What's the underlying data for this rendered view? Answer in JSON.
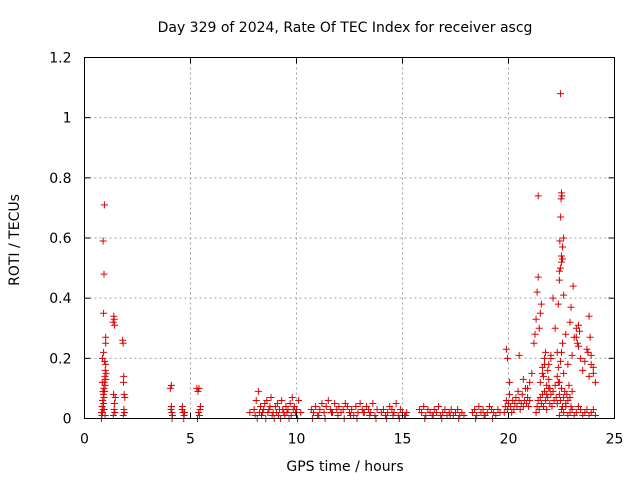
{
  "chart_data": {
    "type": "scatter",
    "title": "Day 329 of 2024, Rate Of TEC Index for receiver ascg",
    "xlabel": "GPS time / hours",
    "ylabel": "ROTI / TECUs",
    "xlim": [
      0,
      25
    ],
    "ylim": [
      0,
      1.2
    ],
    "xticks": [
      0,
      5,
      10,
      15,
      20,
      25
    ],
    "xtick_labels": [
      "0",
      "5",
      "10",
      "15",
      "20",
      "25"
    ],
    "yticks": [
      0,
      0.2,
      0.4,
      0.6,
      0.8,
      1.0,
      1.2
    ],
    "ytick_labels": [
      "0",
      "0.2",
      "0.4",
      "0.6",
      "0.8",
      "1",
      "1.2"
    ],
    "grid": true,
    "marker": "+",
    "color": "#e00000",
    "series": [
      {
        "name": "ROTI",
        "x": [
          0.8,
          0.82,
          0.85,
          0.88,
          0.9,
          0.92,
          0.95,
          0.97,
          1.0,
          1.02,
          0.8,
          0.83,
          0.86,
          0.89,
          0.91,
          0.93,
          0.96,
          0.98,
          1.0,
          0.85,
          0.9,
          0.95,
          0.9,
          0.92,
          0.88,
          0.94,
          1.0,
          1.0,
          0.93,
          0.97,
          0.84,
          0.87,
          1.35,
          1.38,
          1.4,
          1.42,
          1.45,
          1.37,
          1.4,
          1.43,
          1.36,
          1.41,
          1.8,
          1.82,
          1.85,
          1.87,
          1.9,
          1.83,
          1.86,
          1.84,
          1.88,
          4.05,
          4.1,
          4.12,
          4.15,
          4.08,
          4.1,
          4.13,
          4.6,
          4.65,
          4.7,
          4.62,
          4.68,
          4.72,
          5.3,
          5.35,
          5.4,
          5.45,
          5.38,
          5.42,
          5.33,
          5.47,
          7.8,
          8.0,
          8.1,
          8.2,
          8.3,
          8.4,
          8.5,
          8.6,
          8.7,
          8.8,
          8.9,
          9.0,
          9.1,
          9.2,
          9.3,
          9.4,
          9.5,
          9.6,
          9.7,
          9.8,
          9.9,
          10.0,
          10.1,
          10.2,
          8.05,
          8.15,
          8.25,
          8.35,
          8.45,
          8.55,
          8.65,
          8.75,
          8.85,
          8.95,
          9.05,
          9.15,
          9.25,
          9.35,
          9.45,
          9.55,
          9.65,
          9.75,
          9.85,
          9.95,
          10.05,
          10.7,
          10.8,
          10.9,
          11.0,
          11.1,
          11.2,
          11.3,
          11.4,
          11.5,
          11.6,
          11.7,
          11.8,
          11.9,
          12.0,
          12.1,
          12.2,
          12.3,
          12.4,
          12.5,
          12.6,
          12.7,
          12.8,
          12.9,
          13.0,
          13.1,
          13.2,
          13.3,
          13.4,
          13.5,
          13.6,
          13.7,
          13.8,
          10.75,
          11.05,
          11.35,
          11.65,
          11.95,
          12.25,
          12.55,
          12.85,
          13.15,
          13.45,
          13.75,
          14.0,
          14.1,
          14.2,
          14.3,
          14.4,
          14.5,
          14.6,
          14.7,
          14.8,
          14.9,
          15.0,
          15.1,
          15.2,
          14.25,
          14.55,
          14.85,
          15.15,
          15.8,
          15.9,
          16.0,
          16.1,
          16.2,
          16.3,
          16.4,
          16.5,
          16.6,
          16.7,
          16.8,
          16.9,
          17.0,
          17.1,
          17.2,
          17.3,
          17.4,
          17.5,
          17.6,
          17.7,
          17.8,
          17.9,
          16.05,
          16.45,
          16.85,
          17.25,
          17.65,
          18.3,
          18.4,
          18.5,
          18.6,
          18.7,
          18.8,
          18.9,
          19.0,
          19.1,
          19.2,
          19.3,
          19.4,
          19.5,
          19.6,
          18.45,
          18.85,
          19.25,
          19.8,
          19.85,
          19.9,
          19.95,
          20.0,
          20.05,
          20.1,
          20.15,
          20.2,
          20.25,
          20.3,
          20.35,
          20.4,
          20.45,
          20.5,
          20.55,
          20.6,
          20.65,
          20.7,
          20.75,
          20.8,
          20.85,
          20.9,
          20.95,
          21.0,
          19.9,
          19.95,
          20.05,
          20.5,
          20.7,
          20.9,
          21.0,
          21.1,
          21.2,
          21.25,
          21.3,
          21.35,
          21.4,
          21.45,
          21.5,
          21.55,
          21.6,
          21.65,
          21.7,
          21.75,
          21.8,
          21.85,
          21.9,
          21.95,
          22.0,
          21.3,
          21.35,
          21.4,
          21.45,
          21.5,
          21.55,
          21.6,
          21.65,
          21.7,
          21.75,
          21.8,
          21.85,
          21.9,
          21.95,
          22.0,
          22.05,
          22.1,
          22.15,
          22.2,
          22.25,
          22.3,
          22.35,
          22.4,
          22.45,
          22.5,
          22.55,
          22.6,
          22.65,
          22.7,
          22.75,
          22.8,
          22.85,
          22.9,
          22.95,
          23.0,
          21.4,
          21.5,
          21.6,
          21.7,
          21.8,
          21.9,
          22.0,
          22.1,
          22.2,
          22.3,
          22.35,
          22.4,
          22.45,
          22.5,
          22.55,
          22.6,
          22.3,
          22.35,
          22.4,
          22.45,
          22.5,
          22.55,
          22.6,
          22.7,
          22.8,
          22.9,
          23.0,
          23.1,
          23.2,
          23.3,
          23.4,
          23.5,
          23.6,
          23.7,
          23.8,
          23.9,
          24.0,
          24.1,
          22.4,
          22.5,
          22.6,
          22.7,
          22.8,
          22.9,
          23.0,
          23.1,
          23.2,
          23.3,
          23.4,
          23.5,
          23.6,
          23.7,
          23.8,
          23.9,
          24.0,
          24.1,
          22.45,
          22.5,
          22.48,
          22.52,
          22.46,
          22.5,
          22.55,
          22.42,
          22.4,
          22.6,
          22.95,
          23.05,
          23.3,
          23.35,
          23.2,
          23.25,
          23.8,
          23.85,
          23.9,
          24.0,
          23.75
        ],
        "y": [
          0.0,
          0.01,
          0.02,
          0.03,
          0.05,
          0.07,
          0.09,
          0.11,
          0.13,
          0.15,
          0.02,
          0.04,
          0.06,
          0.08,
          0.1,
          0.12,
          0.14,
          0.16,
          0.18,
          0.2,
          0.22,
          0.19,
          0.35,
          0.48,
          0.59,
          0.71,
          0.25,
          0.27,
          0.03,
          0.01,
          0.12,
          0.09,
          0.32,
          0.34,
          0.33,
          0.31,
          0.07,
          0.08,
          0.03,
          0.02,
          0.01,
          0.05,
          0.26,
          0.25,
          0.14,
          0.08,
          0.07,
          0.01,
          0.03,
          0.12,
          0.02,
          0.1,
          0.11,
          0.02,
          0.01,
          0.03,
          0.04,
          0.0,
          0.03,
          0.02,
          0.01,
          0.04,
          0.0,
          0.02,
          0.1,
          0.09,
          0.1,
          0.03,
          0.02,
          0.01,
          0.0,
          0.04,
          0.02,
          0.03,
          0.06,
          0.09,
          0.04,
          0.02,
          0.05,
          0.06,
          0.03,
          0.07,
          0.02,
          0.04,
          0.05,
          0.03,
          0.06,
          0.02,
          0.04,
          0.03,
          0.05,
          0.07,
          0.04,
          0.03,
          0.06,
          0.02,
          0.01,
          0.0,
          0.02,
          0.01,
          0.03,
          0.0,
          0.02,
          0.04,
          0.01,
          0.0,
          0.02,
          0.01,
          0.0,
          0.03,
          0.01,
          0.02,
          0.0,
          0.01,
          0.03,
          0.02,
          0.0,
          0.03,
          0.02,
          0.04,
          0.01,
          0.03,
          0.05,
          0.02,
          0.04,
          0.06,
          0.03,
          0.02,
          0.05,
          0.03,
          0.04,
          0.02,
          0.03,
          0.05,
          0.04,
          0.02,
          0.03,
          0.01,
          0.04,
          0.02,
          0.05,
          0.03,
          0.02,
          0.04,
          0.03,
          0.02,
          0.05,
          0.01,
          0.03,
          0.0,
          0.01,
          0.0,
          0.02,
          0.01,
          0.0,
          0.01,
          0.0,
          0.02,
          0.01,
          0.0,
          0.02,
          0.03,
          0.01,
          0.02,
          0.04,
          0.03,
          0.02,
          0.05,
          0.01,
          0.03,
          0.02,
          0.01,
          0.02,
          0.0,
          0.01,
          0.0,
          0.01,
          0.03,
          0.02,
          0.04,
          0.01,
          0.03,
          0.02,
          0.01,
          0.03,
          0.02,
          0.04,
          0.01,
          0.02,
          0.03,
          0.01,
          0.02,
          0.03,
          0.01,
          0.02,
          0.03,
          0.01,
          0.02,
          0.01,
          0.0,
          0.01,
          0.0,
          0.01,
          0.0,
          0.02,
          0.03,
          0.01,
          0.04,
          0.02,
          0.03,
          0.01,
          0.02,
          0.04,
          0.03,
          0.02,
          0.01,
          0.03,
          0.02,
          0.0,
          0.01,
          0.0,
          0.02,
          0.04,
          0.06,
          0.03,
          0.05,
          0.08,
          0.04,
          0.02,
          0.06,
          0.03,
          0.05,
          0.07,
          0.04,
          0.09,
          0.06,
          0.03,
          0.05,
          0.08,
          0.04,
          0.06,
          0.1,
          0.05,
          0.07,
          0.04,
          0.06,
          0.23,
          0.2,
          0.12,
          0.21,
          0.13,
          0.1,
          0.12,
          0.15,
          0.25,
          0.28,
          0.33,
          0.42,
          0.47,
          0.3,
          0.35,
          0.38,
          0.17,
          0.14,
          0.2,
          0.22,
          0.11,
          0.16,
          0.18,
          0.1,
          0.21,
          0.02,
          0.04,
          0.06,
          0.03,
          0.07,
          0.05,
          0.08,
          0.04,
          0.09,
          0.06,
          0.03,
          0.07,
          0.1,
          0.05,
          0.08,
          0.04,
          0.09,
          0.06,
          0.11,
          0.07,
          0.05,
          0.12,
          0.08,
          0.06,
          0.1,
          0.04,
          0.07,
          0.09,
          0.05,
          0.08,
          0.06,
          0.11,
          0.07,
          0.04,
          0.09,
          0.74,
          0.12,
          0.15,
          0.18,
          0.08,
          0.13,
          0.2,
          0.4,
          0.3,
          0.22,
          0.38,
          0.46,
          0.5,
          0.52,
          0.57,
          0.6,
          0.14,
          0.17,
          0.12,
          0.19,
          0.22,
          0.25,
          0.15,
          0.28,
          0.18,
          0.32,
          0.21,
          0.27,
          0.3,
          0.24,
          0.2,
          0.16,
          0.19,
          0.23,
          0.14,
          0.18,
          0.15,
          0.12,
          0.01,
          0.03,
          0.02,
          0.04,
          0.01,
          0.02,
          0.03,
          0.01,
          0.02,
          0.04,
          0.03,
          0.01,
          0.02,
          0.03,
          0.01,
          0.02,
          0.03,
          0.01,
          1.08,
          0.75,
          0.73,
          0.74,
          0.67,
          0.54,
          0.53,
          0.59,
          0.49,
          0.41,
          0.37,
          0.44,
          0.31,
          0.29,
          0.27,
          0.25,
          0.34,
          0.27,
          0.21,
          0.17,
          0.22
        ]
      }
    ]
  }
}
